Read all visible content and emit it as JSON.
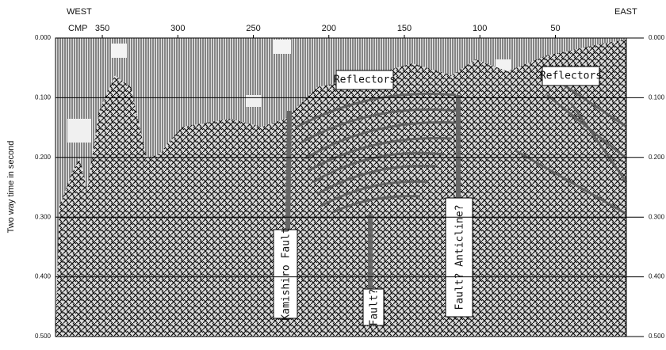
{
  "chart_data": {
    "type": "seismic-section",
    "y_title": "Two way time in second",
    "west_label": "WEST",
    "east_label": "EAST",
    "x_title": "CMP",
    "xlim": [
      381,
      3
    ],
    "xticks": [
      350,
      300,
      250,
      200,
      150,
      100,
      50
    ],
    "ylim": [
      0,
      0.5
    ],
    "yticks": [
      {
        "value": 0,
        "label": "0.000"
      },
      {
        "value": 0.1,
        "label": "0.100"
      },
      {
        "value": 0.2,
        "label": "0.200"
      },
      {
        "value": 0.3,
        "label": "0.300"
      },
      {
        "value": 0.4,
        "label": "0.400"
      },
      {
        "value": 0.5,
        "label": "0.500"
      }
    ],
    "grid": true,
    "annotations": [
      "Reflectors",
      "Reflectors",
      "Kamishiro Fault",
      "Fault?",
      "Fault?  Anticline?"
    ]
  }
}
